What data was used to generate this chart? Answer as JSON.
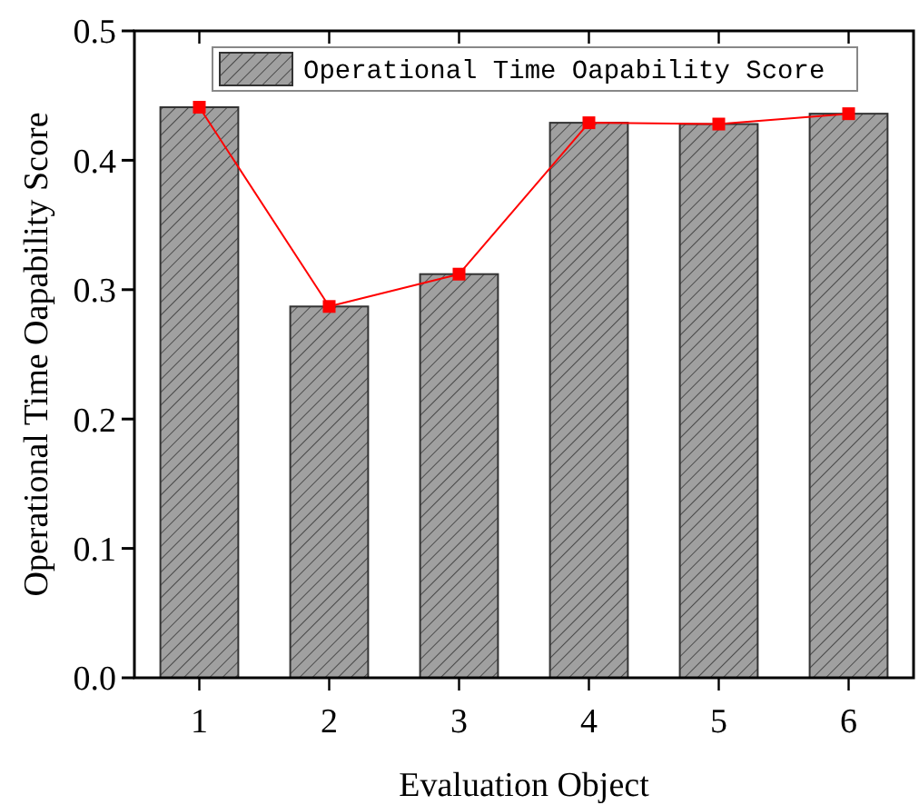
{
  "chart_data": {
    "type": "bar",
    "xlabel": "Evaluation Object",
    "ylabel": "Operational Time Oapability Score",
    "categories": [
      "1",
      "2",
      "3",
      "4",
      "5",
      "6"
    ],
    "series": [
      {
        "name": "Operational Time Oapability Score",
        "color": "#a0a0a0",
        "values": [
          0.441,
          0.287,
          0.312,
          0.429,
          0.428,
          0.436
        ]
      },
      {
        "type": "line",
        "color": "#ff0000",
        "values": [
          0.441,
          0.287,
          0.312,
          0.429,
          0.428,
          0.436
        ],
        "marker": "square",
        "line_style": "solid"
      }
    ],
    "ylim": [
      0,
      0.5
    ],
    "yticks": [
      {
        "value": 0,
        "label": "0.0"
      },
      0.1,
      0.2,
      0.3,
      0.4,
      0.5
    ],
    "legend": "top",
    "grid": false
  }
}
